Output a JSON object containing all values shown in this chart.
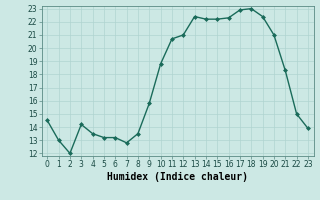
{
  "x": [
    0,
    1,
    2,
    3,
    4,
    5,
    6,
    7,
    8,
    9,
    10,
    11,
    12,
    13,
    14,
    15,
    16,
    17,
    18,
    19,
    20,
    21,
    22,
    23
  ],
  "y": [
    14.5,
    13.0,
    12.0,
    14.2,
    13.5,
    13.2,
    13.2,
    12.8,
    13.5,
    15.8,
    18.8,
    20.7,
    21.0,
    22.4,
    22.2,
    22.2,
    22.3,
    22.9,
    23.0,
    22.4,
    21.0,
    18.3,
    15.0,
    13.9
  ],
  "line_color": "#1a6b5a",
  "marker": "D",
  "marker_size": 2.0,
  "bg_color": "#cce8e4",
  "grid_color": "#b0d4d0",
  "xlabel": "Humidex (Indice chaleur)",
  "ylim": [
    12,
    23
  ],
  "xlim": [
    -0.5,
    23.5
  ],
  "yticks": [
    12,
    13,
    14,
    15,
    16,
    17,
    18,
    19,
    20,
    21,
    22,
    23
  ],
  "xticks": [
    0,
    1,
    2,
    3,
    4,
    5,
    6,
    7,
    8,
    9,
    10,
    11,
    12,
    13,
    14,
    15,
    16,
    17,
    18,
    19,
    20,
    21,
    22,
    23
  ],
  "tick_fontsize": 5.5,
  "xlabel_fontsize": 7.0,
  "linewidth": 1.0
}
